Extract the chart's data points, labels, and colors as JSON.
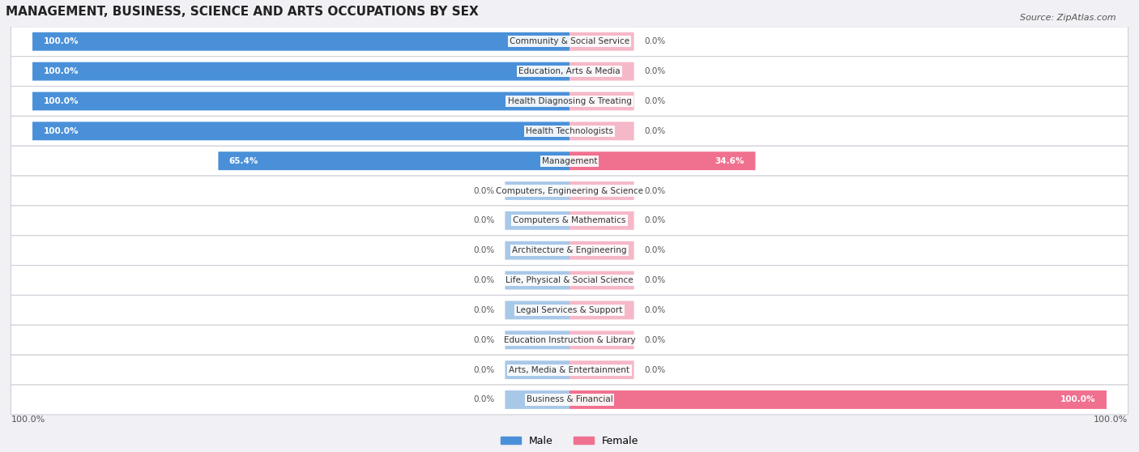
{
  "title": "MANAGEMENT, BUSINESS, SCIENCE AND ARTS OCCUPATIONS BY SEX",
  "source": "Source: ZipAtlas.com",
  "categories": [
    "Community & Social Service",
    "Education, Arts & Media",
    "Health Diagnosing & Treating",
    "Health Technologists",
    "Management",
    "Computers, Engineering & Science",
    "Computers & Mathematics",
    "Architecture & Engineering",
    "Life, Physical & Social Science",
    "Legal Services & Support",
    "Education Instruction & Library",
    "Arts, Media & Entertainment",
    "Business & Financial"
  ],
  "male": [
    100.0,
    100.0,
    100.0,
    100.0,
    65.4,
    0.0,
    0.0,
    0.0,
    0.0,
    0.0,
    0.0,
    0.0,
    0.0
  ],
  "female": [
    0.0,
    0.0,
    0.0,
    0.0,
    34.6,
    0.0,
    0.0,
    0.0,
    0.0,
    0.0,
    0.0,
    0.0,
    100.0
  ],
  "male_color": "#4a90d9",
  "male_color_light": "#a8c8e8",
  "female_color": "#f07090",
  "female_color_light": "#f5b8c8",
  "bg_color": "#f0f0f5",
  "figsize": [
    14.06,
    5.58
  ],
  "dpi": 100
}
